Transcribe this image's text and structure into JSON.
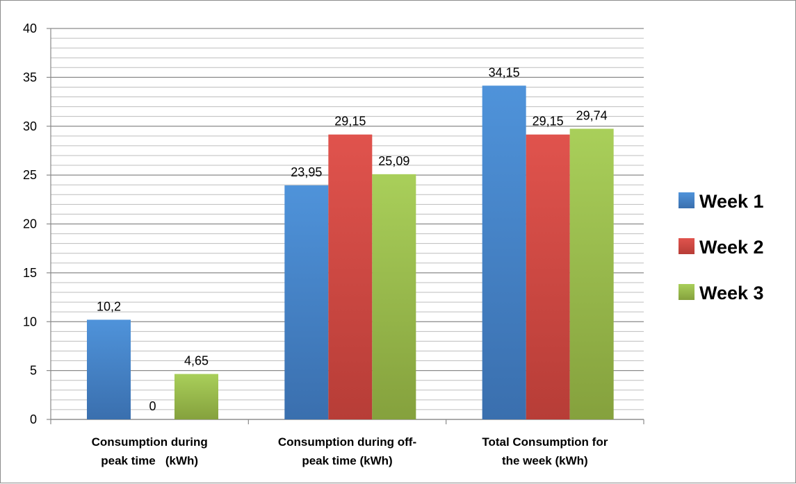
{
  "chart_data": {
    "type": "bar",
    "categories": [
      [
        "Consumption during",
        "peak time   (kWh)"
      ],
      [
        "Consumption during off-",
        "peak time (kWh)"
      ],
      [
        "Total Consumption for",
        "the week (kWh)"
      ]
    ],
    "series": [
      {
        "name": "Week 1",
        "values": [
          10.2,
          23.95,
          34.15
        ],
        "labels": [
          "10,2",
          "23,95",
          "34,15"
        ],
        "color_top": "#4f93da",
        "color_bottom": "#3a6fae"
      },
      {
        "name": "Week 2",
        "values": [
          0,
          29.15,
          29.15
        ],
        "labels": [
          "0",
          "29,15",
          "29,15"
        ],
        "color_top": "#e0534d",
        "color_bottom": "#b73d37"
      },
      {
        "name": "Week 3",
        "values": [
          4.65,
          25.09,
          29.74
        ],
        "labels": [
          "4,65",
          "25,09",
          "29,74"
        ],
        "color_top": "#a9cf5a",
        "color_bottom": "#85a13d"
      }
    ],
    "ylim": [
      0,
      40
    ],
    "major_ticks": [
      0,
      5,
      10,
      15,
      20,
      25,
      30,
      35,
      40
    ],
    "minor_gridline_step": 1,
    "grid": true,
    "legend_position": "right",
    "title": "",
    "xlabel": "",
    "ylabel": ""
  }
}
